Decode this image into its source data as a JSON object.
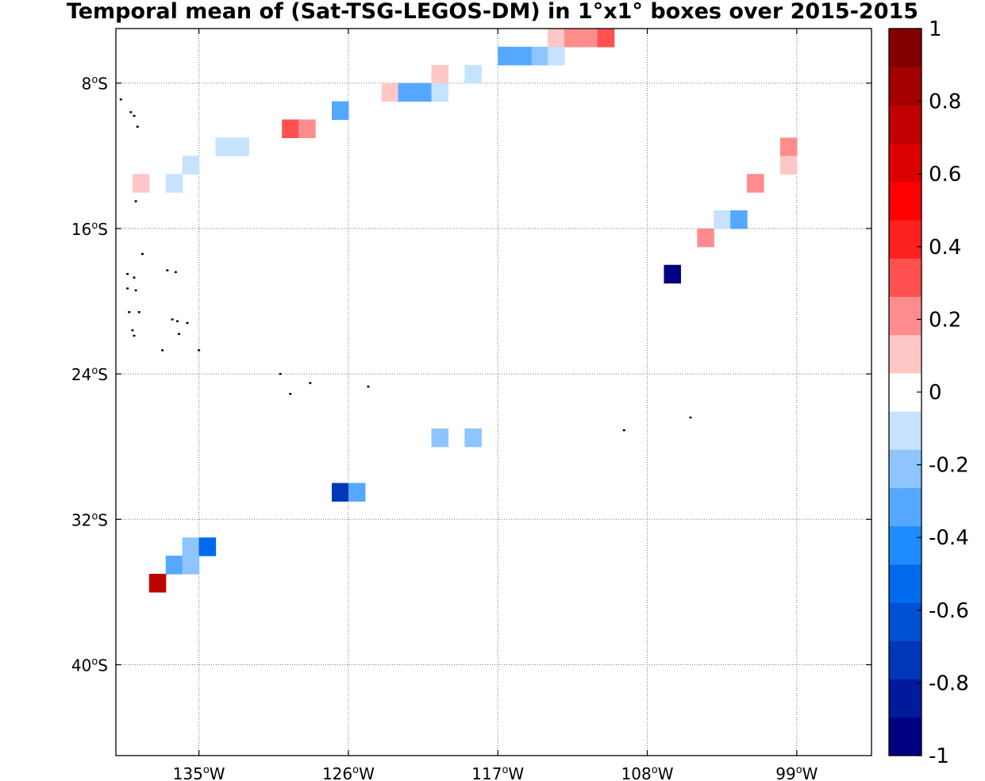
{
  "title": "Temporal mean of (Sat-TSG-LEGOS-DM) in 1°x1° boxes over 2015-2015",
  "map": {
    "lon_range": [
      -140,
      -94.5
    ],
    "lat_range": [
      -45,
      -5
    ],
    "lon_ticks": [
      {
        "value": -135,
        "label": "135",
        "hemi": "W"
      },
      {
        "value": -126,
        "label": "126",
        "hemi": "W"
      },
      {
        "value": -117,
        "label": "117",
        "hemi": "W"
      },
      {
        "value": -108,
        "label": "108",
        "hemi": "W"
      },
      {
        "value": -99,
        "label": "99",
        "hemi": "W"
      }
    ],
    "lat_ticks": [
      {
        "value": -8,
        "label": "8",
        "hemi": "S"
      },
      {
        "value": -16,
        "label": "16",
        "hemi": "S"
      },
      {
        "value": -24,
        "label": "24",
        "hemi": "S"
      },
      {
        "value": -32,
        "label": "32",
        "hemi": "S"
      },
      {
        "value": -40,
        "label": "40",
        "hemi": "S"
      }
    ],
    "grid": "dotted"
  },
  "chart_data": {
    "type": "heatmap",
    "cell_size_deg": 1,
    "cells": [
      {
        "lon": -113.5,
        "lat": -5.5,
        "value": 0.15
      },
      {
        "lon": -112.5,
        "lat": -5.5,
        "value": 0.25
      },
      {
        "lon": -111.5,
        "lat": -5.5,
        "value": 0.25
      },
      {
        "lon": -110.5,
        "lat": -5.5,
        "value": 0.35
      },
      {
        "lon": -114.5,
        "lat": -6.5,
        "value": -0.2
      },
      {
        "lon": -113.5,
        "lat": -6.5,
        "value": -0.15
      },
      {
        "lon": -116.5,
        "lat": -6.5,
        "value": -0.3
      },
      {
        "lon": -115.5,
        "lat": -6.5,
        "value": -0.3
      },
      {
        "lon": -118.5,
        "lat": -7.5,
        "value": -0.15
      },
      {
        "lon": -120.5,
        "lat": -7.5,
        "value": 0.15
      },
      {
        "lon": -123.5,
        "lat": -8.5,
        "value": 0.15
      },
      {
        "lon": -122.5,
        "lat": -8.5,
        "value": -0.3
      },
      {
        "lon": -121.5,
        "lat": -8.5,
        "value": -0.3
      },
      {
        "lon": -120.5,
        "lat": -8.5,
        "value": -0.15
      },
      {
        "lon": -126.5,
        "lat": -9.5,
        "value": -0.3
      },
      {
        "lon": -129.5,
        "lat": -10.5,
        "value": 0.35
      },
      {
        "lon": -128.5,
        "lat": -10.5,
        "value": 0.25
      },
      {
        "lon": -133.5,
        "lat": -11.5,
        "value": -0.15
      },
      {
        "lon": -132.5,
        "lat": -11.5,
        "value": -0.15
      },
      {
        "lon": -135.5,
        "lat": -12.5,
        "value": -0.15
      },
      {
        "lon": -138.5,
        "lat": -13.5,
        "value": 0.15
      },
      {
        "lon": -136.5,
        "lat": -13.5,
        "value": -0.15
      },
      {
        "lon": -99.5,
        "lat": -11.5,
        "value": 0.25
      },
      {
        "lon": -99.5,
        "lat": -12.5,
        "value": 0.15
      },
      {
        "lon": -101.5,
        "lat": -13.5,
        "value": 0.25
      },
      {
        "lon": -103.5,
        "lat": -15.5,
        "value": -0.15
      },
      {
        "lon": -102.5,
        "lat": -15.5,
        "value": -0.3
      },
      {
        "lon": -104.5,
        "lat": -16.5,
        "value": 0.25
      },
      {
        "lon": -106.5,
        "lat": -18.5,
        "value": -1.0
      },
      {
        "lon": -120.5,
        "lat": -27.5,
        "value": -0.25
      },
      {
        "lon": -118.5,
        "lat": -27.5,
        "value": -0.25
      },
      {
        "lon": -126.5,
        "lat": -30.5,
        "value": -0.75
      },
      {
        "lon": -125.5,
        "lat": -30.5,
        "value": -0.35
      },
      {
        "lon": -135.5,
        "lat": -33.5,
        "value": -0.25
      },
      {
        "lon": -134.5,
        "lat": -33.5,
        "value": -0.55
      },
      {
        "lon": -136.5,
        "lat": -34.5,
        "value": -0.35
      },
      {
        "lon": -135.5,
        "lat": -34.5,
        "value": -0.25
      },
      {
        "lon": -137.5,
        "lat": -35.5,
        "value": 0.75
      }
    ]
  },
  "colorbar": {
    "min": -1,
    "max": 1,
    "colors": [
      "#000080",
      "#001a9c",
      "#0036b8",
      "#0050d4",
      "#006aee",
      "#1e8cff",
      "#55a8ff",
      "#8ec4ff",
      "#c6e2ff",
      "#ffffff",
      "#ffc6c6",
      "#ff8c8c",
      "#ff5050",
      "#ff2020",
      "#ff0000",
      "#dc0000",
      "#c00000",
      "#a40000",
      "#840000"
    ],
    "tick_labels": [
      "1",
      "0.8",
      "0.6",
      "0.4",
      "0.2",
      "0",
      "-0.2",
      "-0.4",
      "-0.6",
      "-0.8",
      "-1"
    ]
  },
  "islands": [
    {
      "lon": -139.7,
      "lat": -8.9
    },
    {
      "lon": -139.1,
      "lat": -9.6
    },
    {
      "lon": -138.9,
      "lat": -9.8
    },
    {
      "lon": -138.7,
      "lat": -10.4
    },
    {
      "lon": -138.8,
      "lat": -14.5
    },
    {
      "lon": -138.4,
      "lat": -17.4
    },
    {
      "lon": -139.3,
      "lat": -18.5
    },
    {
      "lon": -138.9,
      "lat": -18.7
    },
    {
      "lon": -139.3,
      "lat": -19.3
    },
    {
      "lon": -138.8,
      "lat": -19.4
    },
    {
      "lon": -136.9,
      "lat": -18.3
    },
    {
      "lon": -136.4,
      "lat": -18.4
    },
    {
      "lon": -139.2,
      "lat": -20.6
    },
    {
      "lon": -138.6,
      "lat": -20.6
    },
    {
      "lon": -136.6,
      "lat": -21.0
    },
    {
      "lon": -136.3,
      "lat": -21.1
    },
    {
      "lon": -135.7,
      "lat": -21.2
    },
    {
      "lon": -139.0,
      "lat": -21.6
    },
    {
      "lon": -138.9,
      "lat": -21.9
    },
    {
      "lon": -136.2,
      "lat": -21.8
    },
    {
      "lon": -137.2,
      "lat": -22.7
    },
    {
      "lon": -135.0,
      "lat": -22.7
    },
    {
      "lon": -130.1,
      "lat": -24.0
    },
    {
      "lon": -128.3,
      "lat": -24.5
    },
    {
      "lon": -129.5,
      "lat": -25.1
    },
    {
      "lon": -124.8,
      "lat": -24.7
    },
    {
      "lon": -109.4,
      "lat": -27.1
    },
    {
      "lon": -105.4,
      "lat": -26.4
    }
  ]
}
